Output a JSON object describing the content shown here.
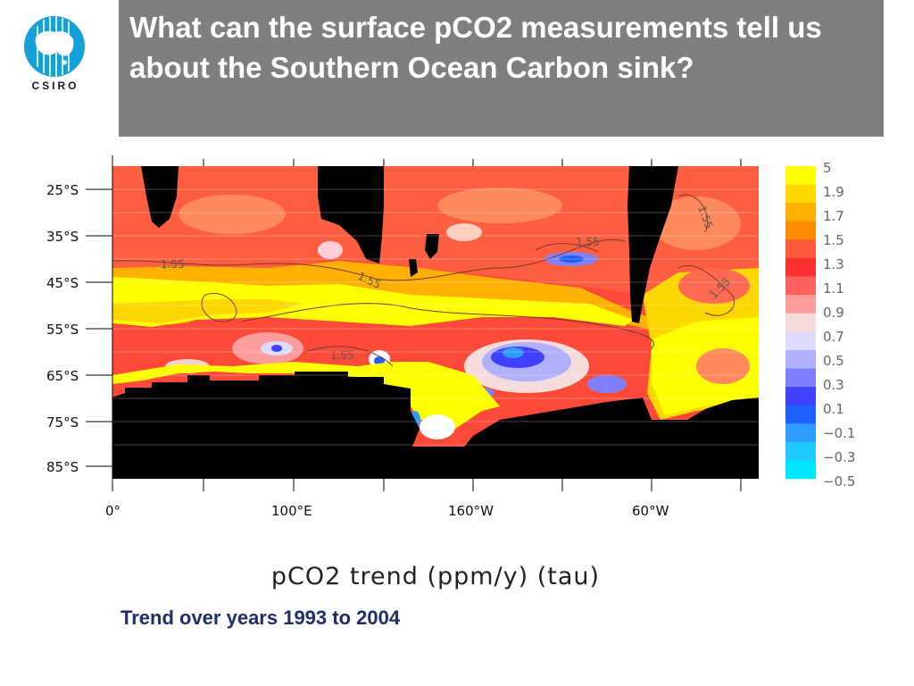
{
  "header": {
    "title": "What can the surface pCO2 measurements tell us about the Southern Ocean Carbon sink?",
    "logo_text": "CSIRO"
  },
  "map": {
    "lat_labels": [
      "25°S",
      "35°S",
      "45°S",
      "55°S",
      "65°S",
      "75°S",
      "85°S"
    ],
    "lon_labels": [
      "0°",
      "100°E",
      "160°W",
      "60°W"
    ],
    "contour_labels": [
      "1.55",
      "1.55",
      "1.55",
      "1.55",
      "1.55",
      "1.55",
      "1.55"
    ],
    "legend": {
      "labels": [
        "5",
        "1.9",
        "1.7",
        "1.5",
        "1.3",
        "1.1",
        "0.9",
        "0.7",
        "0.5",
        "0.3",
        "0.1",
        "−0.1",
        "−0.3",
        "−0.5"
      ],
      "colors": [
        "#ffff00",
        "#ffd700",
        "#ffb000",
        "#ff8c00",
        "#ff5a3c",
        "#ff3030",
        "#ff6060",
        "#ff9c9c",
        "#f7dcdc",
        "#dcdcff",
        "#b0b0ff",
        "#8080ff",
        "#4040ff",
        "#1f60ff",
        "#2f9cff",
        "#1fc8ff",
        "#00e5ff"
      ]
    },
    "colors": {
      "land": "#000000",
      "yellow": "#ffff00",
      "orange": "#ff8c00",
      "red": "#ff4a3a"
    }
  },
  "caption": "pCO2 trend (ppm/y) (tau)",
  "subtitle": "Trend over years 1993 to 2004"
}
